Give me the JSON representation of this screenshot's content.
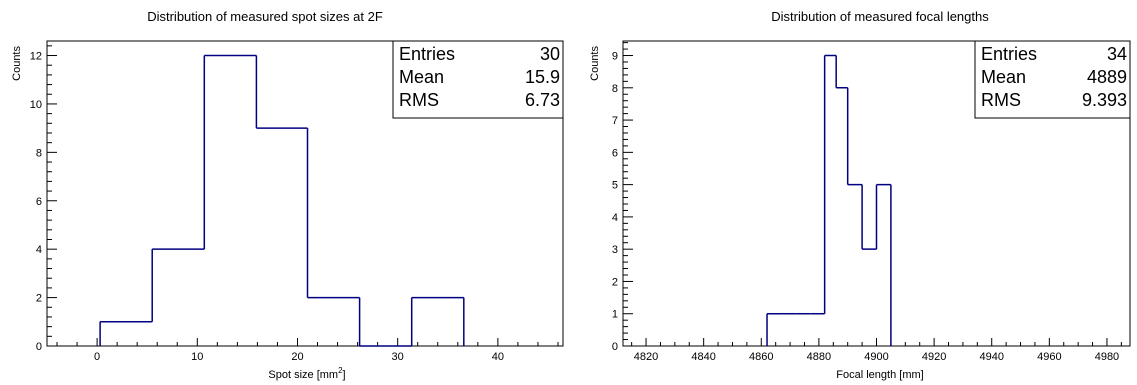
{
  "chart_data": [
    {
      "type": "bar",
      "style": "step-histogram",
      "title": "Distribution of measured spot sizes at 2F",
      "xlabel": "Spot size [mm",
      "xlabel_sup": "2",
      "xlabel_end": "]",
      "ylabel": "Counts",
      "xlim": [
        -5,
        46.5
      ],
      "ylim": [
        0,
        12.6
      ],
      "xticks": [
        0,
        10,
        20,
        30,
        40
      ],
      "yticks": [
        0,
        2,
        4,
        6,
        8,
        10,
        12
      ],
      "bin_edges": [
        0.3,
        5.5,
        10.7,
        15.9,
        21.0,
        26.2,
        31.4,
        36.6
      ],
      "values": [
        1,
        4,
        12,
        9,
        2,
        0,
        2
      ],
      "line_color": "#000080",
      "stats": [
        {
          "label": "Entries",
          "value": "30"
        },
        {
          "label": "Mean",
          "value": "15.9"
        },
        {
          "label": "RMS",
          "value": "6.73"
        }
      ]
    },
    {
      "type": "bar",
      "style": "step-histogram",
      "title": "Distribution of measured focal lengths",
      "xlabel": "Focal length [mm]",
      "ylabel": "Counts",
      "xlim": [
        4812,
        4988
      ],
      "ylim": [
        0,
        9.45
      ],
      "xticks": [
        4820,
        4840,
        4860,
        4880,
        4900,
        4920,
        4940,
        4960,
        4980
      ],
      "yticks": [
        0,
        1,
        2,
        3,
        4,
        5,
        6,
        7,
        8,
        9
      ],
      "bin_edges": [
        4862,
        4867,
        4872,
        4877,
        4882,
        4886,
        4890,
        4895,
        4900,
        4905
      ],
      "values": [
        1,
        1,
        1,
        1,
        9,
        8,
        5,
        3,
        5
      ],
      "line_color": "#000080",
      "stats": [
        {
          "label": "Entries",
          "value": "34"
        },
        {
          "label": "Mean",
          "value": "4889"
        },
        {
          "label": "RMS",
          "value": "9.393"
        }
      ]
    }
  ]
}
